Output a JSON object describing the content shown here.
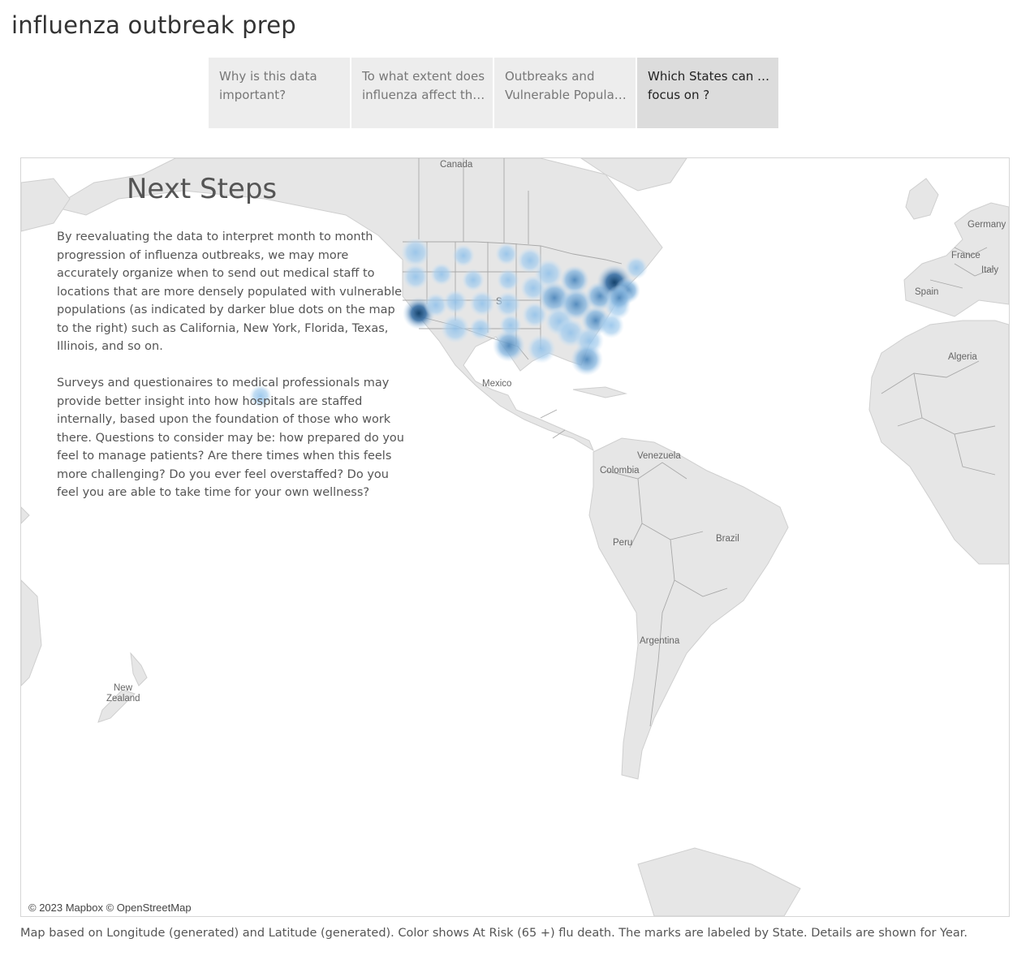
{
  "page": {
    "title": "influenza outbreak prep"
  },
  "tabs": [
    {
      "label": "Why is this data important?",
      "line1": "Why is this data",
      "line2": "important?",
      "active": false
    },
    {
      "label": "To what extent does influenza affect the s..",
      "line1": "To what extent does",
      "line2": "influenza affect the s..",
      "active": false
    },
    {
      "label": "Outbreaks and Vulnerable Populatio..",
      "line1": "Outbreaks and",
      "line2": "Vulnerable Populatio..",
      "active": false
    },
    {
      "label": "Which States can we focus on ?",
      "line1": "Which States can we",
      "line2": "focus on ?",
      "active": true
    }
  ],
  "panel": {
    "title": "Next Steps",
    "paragraph1": "By reevaluating the data to interpret month to month progression of influenza outbreaks, we may more accurately organize when to send out medical staff to locations that are more densely populated with vulnerable populations (as indicated by darker blue dots on the map to the right) such as California, New York, Florida, Texas, Illinois, and so on.",
    "paragraph2": "Surveys and questionaires to medical professionals may provide better insight into how hospitals are staffed internally, based upon the foundation of those who work there. Questions to consider may be: how prepared do you feel to manage patients? Are there times when this feels more challenging? Do you ever feel overstaffed? Do you feel you are able to take time for your own wellness?"
  },
  "map": {
    "labels": {
      "canada": "Canada",
      "mexico": "Mexico",
      "united_states_fragment": "S",
      "germany": "Germany",
      "france": "France",
      "italy": "Italy",
      "spain": "Spain",
      "algeria": "Algeria",
      "venezuela": "Venezuela",
      "colombia": "Colombia",
      "peru": "Peru",
      "brazil": "Brazil",
      "argentina": "Argentina",
      "new_zealand_line1": "New",
      "new_zealand_line2": "Zealand"
    },
    "credit": "© 2023 Mapbox © OpenStreetMap",
    "colors": {
      "land": "#e6e6e6",
      "border": "#a8a8a8",
      "mark_light": "#a9cfee",
      "mark_dark": "#15436d"
    }
  },
  "caption": "Map based on Longitude (generated) and Latitude (generated).  Color shows At Risk (65 +) flu death.  The marks are labeled by State.  Details are shown for Year."
}
